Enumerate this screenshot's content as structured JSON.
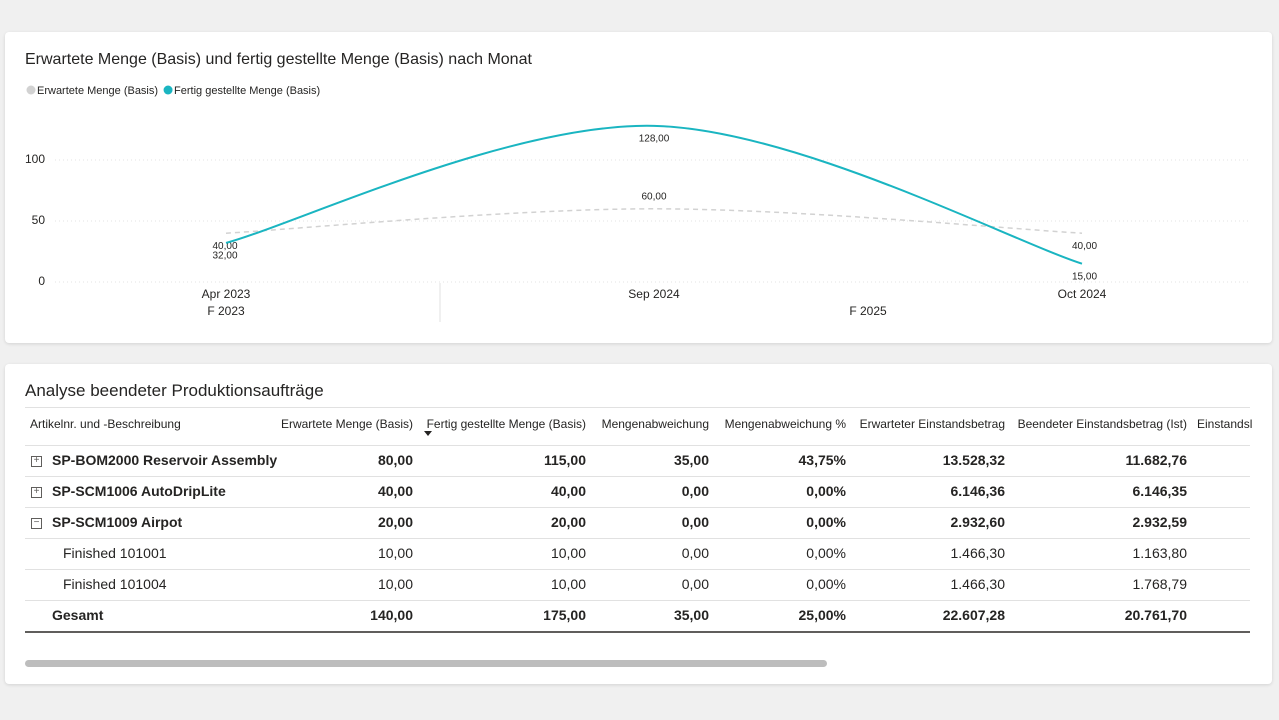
{
  "chart_data": {
    "type": "line",
    "title": "Erwartete Menge (Basis) und fertig gestellte Menge (Basis) nach Monat",
    "categories": [
      "Apr 2023",
      "Sep 2024",
      "Oct 2024"
    ],
    "category_groups": [
      "F 2023",
      "F 2025",
      "F 2025"
    ],
    "series": [
      {
        "name": "Erwartete Menge (Basis)",
        "color": "#d2d2d2",
        "line_style": "dashed",
        "values": [
          40,
          60,
          40
        ],
        "value_labels": [
          "40,00",
          "60,00",
          "40,00"
        ]
      },
      {
        "name": "Fertig gestellte Menge (Basis)",
        "color": "#1ab5c1",
        "line_style": "solid",
        "values": [
          32,
          128,
          15
        ],
        "value_labels": [
          "32,00",
          "128,00",
          "15,00"
        ]
      }
    ],
    "ylim": [
      0,
      140
    ],
    "yticks": [
      0,
      50,
      100
    ],
    "grid": true,
    "legend": "top-left",
    "smooth": true
  },
  "table": {
    "title": "Analyse beendeter Produktionsaufträge",
    "columns": [
      "Artikelnr. und -Beschreibung",
      "Erwartete Menge (Basis)",
      "Fertig gestellte Menge (Basis)",
      "Mengenabweichung",
      "Mengenabweichung %",
      "Erwarteter Einstandsbetrag",
      "Beendeter Einstandsbetrag (Ist)",
      "Einstandsl"
    ],
    "sorted_column": 2,
    "rows": [
      {
        "cells": [
          "SP-BOM2000 Reservoir Assembly",
          "80,00",
          "115,00",
          "35,00",
          "43,75%",
          "13.528,32",
          "11.682,76"
        ],
        "expanded": false
      },
      {
        "cells": [
          "SP-SCM1006 AutoDripLite",
          "40,00",
          "40,00",
          "0,00",
          "0,00%",
          "6.146,36",
          "6.146,35"
        ],
        "expanded": false
      },
      {
        "cells": [
          "SP-SCM1009 Airpot",
          "20,00",
          "20,00",
          "0,00",
          "0,00%",
          "2.932,60",
          "2.932,59"
        ],
        "expanded": true,
        "children": [
          {
            "cells": [
              "Finished 101001",
              "10,00",
              "10,00",
              "0,00",
              "0,00%",
              "1.466,30",
              "1.163,80"
            ]
          },
          {
            "cells": [
              "Finished 101004",
              "10,00",
              "10,00",
              "0,00",
              "0,00%",
              "1.466,30",
              "1.768,79"
            ]
          }
        ]
      }
    ],
    "total": [
      "Gesamt",
      "140,00",
      "175,00",
      "35,00",
      "25,00%",
      "22.607,28",
      "20.761,70"
    ]
  }
}
